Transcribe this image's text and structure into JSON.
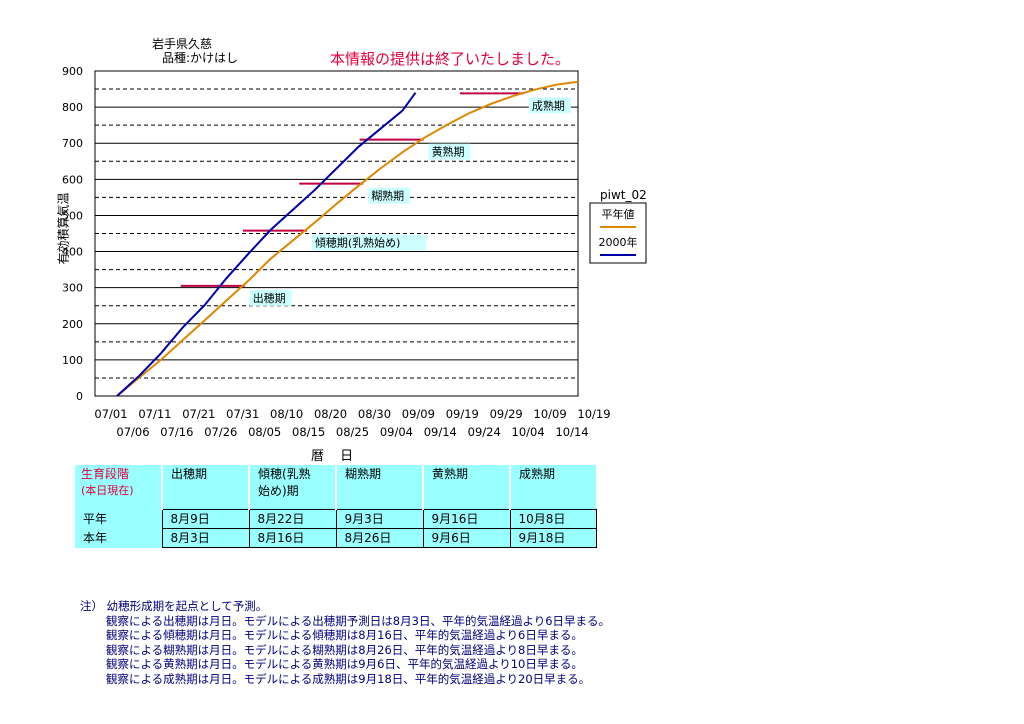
{
  "header": {
    "location": "岩手県久慈",
    "variety": "品種:かけはし",
    "notice": "本情報の提供は終了いたしました。"
  },
  "chart_data": {
    "type": "line",
    "ylabel": "有効積算気温",
    "xlabel": "暦 日",
    "ylim": [
      0,
      900
    ],
    "yticks": [
      0,
      100,
      200,
      300,
      400,
      500,
      600,
      700,
      800,
      900
    ],
    "x_tick_labels_top": [
      "07/01",
      "07/11",
      "07/21",
      "07/31",
      "08/10",
      "08/20",
      "08/30",
      "09/09",
      "09/19",
      "09/29",
      "10/09",
      "10/19"
    ],
    "x_tick_labels_bottom": [
      "07/06",
      "07/16",
      "07/26",
      "08/05",
      "08/15",
      "08/25",
      "09/04",
      "09/14",
      "09/24",
      "10/04",
      "10/14"
    ],
    "x_range_days": [
      0,
      110
    ],
    "grid": "solid major every 100, dashed minor every 50",
    "legend": {
      "title": "piwt_02",
      "position": "right"
    },
    "series": [
      {
        "name": "平年値",
        "color": "#dd8800",
        "x": [
          "07/06",
          "07/11",
          "07/16",
          "07/21",
          "07/26",
          "07/31",
          "08/05",
          "08/10",
          "08/15",
          "08/20",
          "08/25",
          "08/30",
          "09/04",
          "09/09",
          "09/14",
          "09/19",
          "09/24",
          "09/29",
          "10/04",
          "10/09",
          "10/14",
          "10/19"
        ],
        "y": [
          0,
          50,
          100,
          155,
          210,
          265,
          320,
          380,
          430,
          480,
          532,
          582,
          630,
          675,
          715,
          750,
          782,
          808,
          830,
          848,
          862,
          870
        ]
      },
      {
        "name": "2000年",
        "color": "#0000aa",
        "x": [
          "07/06",
          "07/11",
          "07/16",
          "07/21",
          "07/26",
          "07/31",
          "08/05",
          "08/10",
          "08/15",
          "08/20",
          "08/25",
          "08/30",
          "09/04",
          "09/09",
          "09/12"
        ],
        "y": [
          0,
          55,
          118,
          190,
          252,
          327,
          395,
          460,
          515,
          570,
          630,
          690,
          740,
          790,
          840
        ]
      }
    ],
    "stage_markers": [
      {
        "label": "出穂期",
        "y": 305
      },
      {
        "label": "傾穂期(乳熟始め)",
        "y": 458
      },
      {
        "label": "糊熟期",
        "y": 588
      },
      {
        "label": "黄熟期",
        "y": 710
      },
      {
        "label": "成熟期",
        "y": 838
      }
    ],
    "marker_color": "#c00040"
  },
  "table": {
    "header": [
      "生育段階\n(本日現在)",
      "出穂期",
      "傾穂(乳熟\n始め)期",
      "糊熟期",
      "黄熟期",
      "成熟期"
    ],
    "rows": [
      {
        "label": "平年",
        "values": [
          "8月9日",
          "8月22日",
          "9月3日",
          "9月16日",
          "10月8日"
        ]
      },
      {
        "label": "本年",
        "values": [
          "8月3日",
          "8月16日",
          "8月26日",
          "9月6日",
          "9月18日"
        ]
      }
    ]
  },
  "notes": {
    "title": "注） 幼穂形成期を起点として予測。",
    "lines": [
      "観察による出穂期は月日。モデルによる出穂期予測日は8月3日、平年的気温経過より6日早まる。",
      "観察による傾穂期は月日。モデルによる傾穂期は8月16日、平年的気温経過より6日早まる。",
      "観察による糊熟期は月日。モデルによる糊熟期は8月26日、平年的気温経過より8日早まる。",
      "観察による黄熟期は月日。モデルによる黄熟期は9月6日、平年的気温経過より10日早まる。",
      "観察による成熟期は月日。モデルによる成熟期は9月18日、平年的気温経過より20日早まる。"
    ]
  }
}
